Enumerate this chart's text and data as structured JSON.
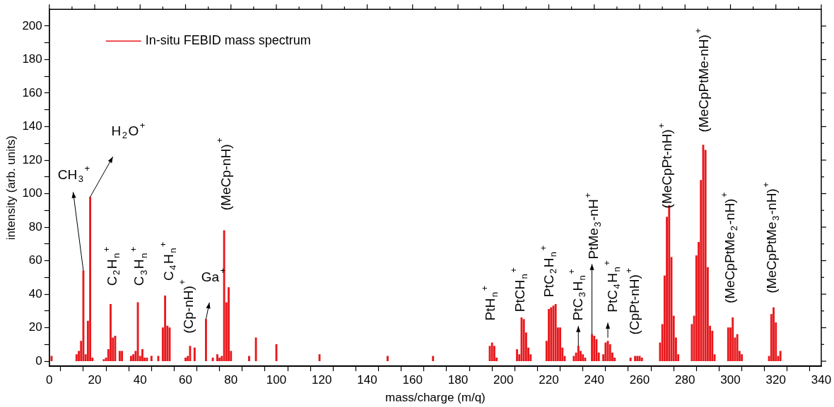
{
  "chart_data": {
    "type": "bar",
    "xlabel": "mass/charge (m/q)",
    "ylabel": "intensity (arb. units)",
    "legend": "top left",
    "xlim": [
      0,
      340
    ],
    "ylim": [
      -3,
      210
    ],
    "xticks": [
      0,
      {
        "value": 10,
        "label": null
      },
      20,
      {
        "value": 30,
        "label": null
      },
      40,
      {
        "value": 50,
        "label": null
      },
      60,
      {
        "value": 70,
        "label": null
      },
      80,
      {
        "value": 90,
        "label": null
      },
      100,
      {
        "value": 110,
        "label": null
      },
      120,
      {
        "value": 130,
        "label": null
      },
      140,
      {
        "value": 150,
        "label": null
      },
      160,
      {
        "value": 170,
        "label": null
      },
      180,
      {
        "value": 190,
        "label": null
      },
      200,
      {
        "value": 210,
        "label": null
      },
      220,
      {
        "value": 230,
        "label": null
      },
      240,
      {
        "value": 250,
        "label": null
      },
      260,
      {
        "value": 270,
        "label": null
      },
      280,
      {
        "value": 290,
        "label": null
      },
      300,
      {
        "value": 310,
        "label": null
      },
      320,
      {
        "value": 330,
        "label": null
      },
      340
    ],
    "yticks": [
      0,
      {
        "value": 10,
        "label": null
      },
      20,
      {
        "value": 30,
        "label": null
      },
      40,
      {
        "value": 50,
        "label": null
      },
      60,
      {
        "value": 70,
        "label": null
      },
      80,
      {
        "value": 90,
        "label": null
      },
      100,
      {
        "value": 110,
        "label": null
      },
      120,
      {
        "value": 130,
        "label": null
      },
      140,
      {
        "value": 150,
        "label": null
      },
      160,
      {
        "value": 170,
        "label": null
      },
      180,
      {
        "value": 190,
        "label": null
      },
      200
    ],
    "grid": false,
    "series": [
      {
        "name": "In-situ FEBID mass spectrum",
        "color": "#e8181c",
        "x": [
          1,
          12,
          13,
          14,
          15,
          16,
          17,
          18,
          19,
          24,
          25,
          26,
          27,
          28,
          29,
          31,
          32,
          36,
          37,
          38,
          39,
          40,
          41,
          42,
          43,
          45,
          48,
          50,
          51,
          52,
          53,
          60,
          61,
          62,
          64,
          69,
          72,
          74,
          75,
          76,
          77,
          78,
          79,
          80,
          88,
          91,
          100,
          119,
          149,
          169,
          194,
          195,
          196,
          197,
          206,
          207,
          208,
          209,
          210,
          211,
          212,
          219,
          220,
          221,
          222,
          223,
          224,
          225,
          226,
          227,
          231,
          232,
          233,
          234,
          235,
          236,
          239,
          240,
          241,
          242,
          244,
          245,
          246,
          247,
          248,
          249,
          256,
          258,
          259,
          260,
          261,
          269,
          270,
          271,
          272,
          273,
          274,
          275,
          276,
          277,
          283,
          284,
          285,
          286,
          287,
          288,
          289,
          290,
          291,
          292,
          293,
          299,
          300,
          301,
          302,
          303,
          304,
          305,
          317,
          318,
          319,
          320,
          321,
          322
        ],
        "values": [
          3,
          4,
          6,
          12,
          54,
          4,
          24,
          98,
          2,
          1,
          2,
          7,
          34,
          14,
          15,
          6,
          6,
          3,
          4,
          6,
          35,
          3,
          7,
          2,
          2,
          3,
          3,
          20,
          39,
          21,
          20,
          2,
          3,
          9,
          8,
          25,
          2,
          4,
          2,
          3,
          78,
          35,
          44,
          6,
          3,
          14,
          10,
          4,
          3,
          3,
          9,
          11,
          9,
          2,
          7,
          4,
          26,
          25,
          17,
          8,
          4,
          12,
          31,
          32,
          33,
          34,
          20,
          20,
          8,
          3,
          3,
          5,
          9,
          6,
          4,
          2,
          16,
          15,
          13,
          5,
          4,
          11,
          12,
          10,
          5,
          2,
          2,
          3,
          3,
          3,
          2,
          11,
          22,
          51,
          86,
          93,
          62,
          27,
          14,
          4,
          22,
          27,
          63,
          71,
          108,
          129,
          126,
          56,
          21,
          18,
          4,
          20,
          20,
          26,
          14,
          16,
          6,
          4,
          3,
          28,
          32,
          23,
          3,
          6
        ]
      }
    ],
    "annotations": [
      {
        "text": "CH$_{3}$$^{+}$",
        "x": 15,
        "y": 54
      },
      {
        "text": "H$_{2}$O$^{+}$",
        "x": 18,
        "y": 98
      },
      {
        "text": "C$_{2}$H$_{n}$$^{+}$",
        "x": 27,
        "y": 34
      },
      {
        "text": "C$_{3}$H$_{n}$$^{+}$",
        "x": 39,
        "y": 35
      },
      {
        "text": "C$_{4}$H$_{n}$$^{+}$",
        "x": 51,
        "y": 39
      },
      {
        "text": "(Cp-nH)$^{+}$",
        "x": 62,
        "y": 9
      },
      {
        "text": "Ga$^{+}$",
        "x": 69,
        "y": 25
      },
      {
        "text": "(MeCp-nH)$^{+}$",
        "x": 77,
        "y": 78
      },
      {
        "text": "PtH$_{n}$$^{+}$",
        "x": 195,
        "y": 11
      },
      {
        "text": "PtCH$_{n}$$^{+}$",
        "x": 208,
        "y": 26
      },
      {
        "text": "PtC$_{2}$H$_{n}$$^{+}$",
        "x": 223,
        "y": 34
      },
      {
        "text": "PtC$_{3}$H$_{n}$$^{+}$",
        "x": 233,
        "y": 9
      },
      {
        "text": "PtMe$_{3}$-nH$^{+}$",
        "x": 239,
        "y": 16
      },
      {
        "text": "PtC$_{4}$H$_{n}$$^{+}$",
        "x": 246,
        "y": 12
      },
      {
        "text": "(CpPt-nH)$^{+}$",
        "x": 259,
        "y": 3
      },
      {
        "text": "(MeCpPt-nH)$^{+}$",
        "x": 273,
        "y": 93
      },
      {
        "text": "(MeCpPtMe-nH)$^{+}$",
        "x": 288,
        "y": 129
      },
      {
        "text": "(MeCpPtMe$_{2}$-nH)$^{+}$",
        "x": 301,
        "y": 26
      },
      {
        "text": "(MeCpPtMe$_{3}$-nH)$^{+}$",
        "x": 319,
        "y": 32
      }
    ]
  }
}
